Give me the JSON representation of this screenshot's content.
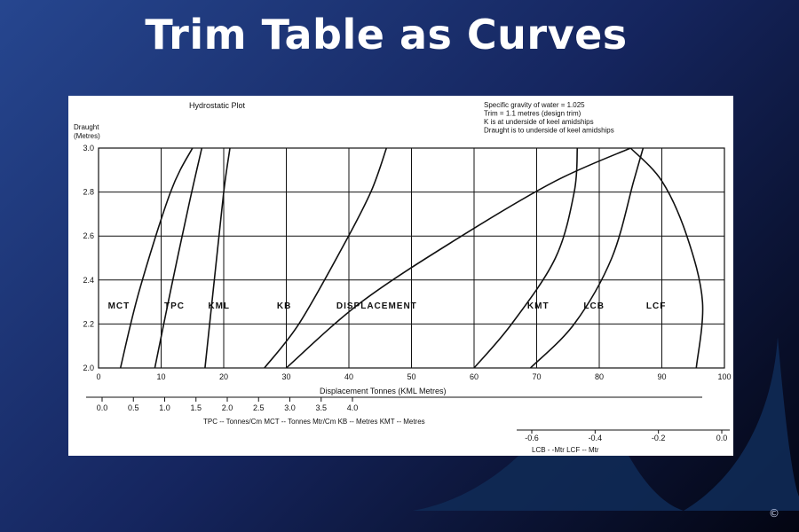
{
  "slide": {
    "title": "Trim Table as Curves",
    "copyright": "©",
    "colors": {
      "background_start": "#26468f",
      "background_end": "#030512",
      "wave": "#0f2a55",
      "ink": "#111111"
    }
  },
  "chart_data": {
    "type": "line",
    "title": "Hydrostatic Plot",
    "notes": [
      "Specific gravity of water = 1.025",
      "Trim = 1.1 metres (design trim)",
      "K is at underside of keel amidships",
      "Draught is to underside of keel amidships"
    ],
    "ylabel": "Draught\n(Metres)",
    "ylim": [
      2.0,
      3.0
    ],
    "yticks": [
      "2.0",
      "2.2",
      "2.4",
      "2.6",
      "2.8",
      "3.0"
    ],
    "xlim": [
      0,
      100
    ],
    "xticks": [
      "0",
      "10",
      "20",
      "30",
      "40",
      "50",
      "60",
      "70",
      "80",
      "90",
      "100"
    ],
    "xlabel": "Displacement Tonnes (KML Metres)",
    "secondary_axis": {
      "ticks": [
        "0.0",
        "0.5",
        "1.0",
        "1.5",
        "2.0",
        "2.5",
        "3.0",
        "3.5",
        "4.0"
      ],
      "label": "TPC -- Tonnes/Cm  MCT -- Tonnes Mtr/Cm  KB -- Metres  KMT -- Metres"
    },
    "tertiary_axis": {
      "ticks": [
        "-0.6",
        "-0.4",
        "-0.2",
        "0.0"
      ],
      "label": "LCB - -Mtr   LCF -- Mtr"
    },
    "grid": true,
    "series": [
      {
        "name": "MCT",
        "points": [
          [
            3.5,
            2.0
          ],
          [
            6.5,
            2.35
          ],
          [
            11.5,
            2.8
          ],
          [
            15,
            3.0
          ]
        ]
      },
      {
        "name": "TPC",
        "points": [
          [
            9,
            2.0
          ],
          [
            11.5,
            2.35
          ],
          [
            14.5,
            2.75
          ],
          [
            16.5,
            3.0
          ]
        ]
      },
      {
        "name": "KML",
        "points": [
          [
            17,
            2.0
          ],
          [
            18.5,
            2.4
          ],
          [
            20,
            2.8
          ],
          [
            21,
            3.0
          ]
        ]
      },
      {
        "name": "KB",
        "points": [
          [
            26.5,
            2.0
          ],
          [
            32,
            2.2
          ],
          [
            39,
            2.55
          ],
          [
            43.5,
            2.8
          ],
          [
            46,
            3.0
          ]
        ]
      },
      {
        "name": "DISPLACEMENT",
        "points": [
          [
            30,
            2.0
          ],
          [
            42,
            2.3
          ],
          [
            58,
            2.6
          ],
          [
            73,
            2.85
          ],
          [
            85,
            3.0
          ]
        ]
      },
      {
        "name": "KMT",
        "points": [
          [
            60,
            2.0
          ],
          [
            66,
            2.2
          ],
          [
            73,
            2.5
          ],
          [
            76,
            2.8
          ],
          [
            76.5,
            3.0
          ]
        ]
      },
      {
        "name": "LCB",
        "points": [
          [
            69,
            2.0
          ],
          [
            76,
            2.2
          ],
          [
            82,
            2.5
          ],
          [
            85.5,
            2.85
          ],
          [
            87,
            3.0
          ]
        ]
      },
      {
        "name": "LCF",
        "points": [
          [
            95.5,
            2.0
          ],
          [
            96.5,
            2.3
          ],
          [
            94,
            2.6
          ],
          [
            90,
            2.85
          ],
          [
            85,
            3.0
          ]
        ]
      }
    ],
    "series_labels": [
      {
        "name": "MCT",
        "at": [
          1.5,
          2.27
        ]
      },
      {
        "name": "TPC",
        "at": [
          10.5,
          2.27
        ]
      },
      {
        "name": "KML",
        "at": [
          17.5,
          2.27
        ]
      },
      {
        "name": "KB",
        "at": [
          28.5,
          2.27
        ]
      },
      {
        "name": "DISPLACEMENT",
        "at": [
          38,
          2.27
        ]
      },
      {
        "name": "KMT",
        "at": [
          68.5,
          2.27
        ]
      },
      {
        "name": "LCB",
        "at": [
          77.5,
          2.27
        ]
      },
      {
        "name": "LCF",
        "at": [
          87.5,
          2.27
        ]
      }
    ]
  }
}
